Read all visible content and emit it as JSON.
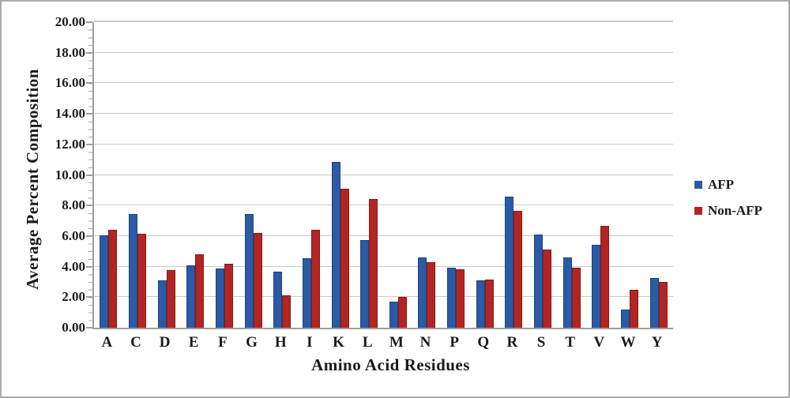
{
  "chart_data": {
    "type": "bar",
    "title": "",
    "xlabel": "Amino Acid Residues",
    "ylabel": "Average Percent Composition",
    "categories": [
      "A",
      "C",
      "D",
      "E",
      "F",
      "G",
      "H",
      "I",
      "K",
      "L",
      "M",
      "N",
      "P",
      "Q",
      "R",
      "S",
      "T",
      "V",
      "W",
      "Y"
    ],
    "series": [
      {
        "name": "AFP",
        "color": "#2b5aa6",
        "border_color": "#1f4379",
        "values": [
          6.05,
          7.45,
          3.1,
          4.1,
          3.9,
          7.45,
          3.65,
          4.55,
          10.85,
          5.75,
          1.7,
          4.6,
          3.95,
          3.1,
          8.6,
          6.1,
          4.6,
          5.45,
          1.2,
          3.25
        ]
      },
      {
        "name": "Non-AFP",
        "color": "#b22523",
        "border_color": "#871a18",
        "values": [
          6.4,
          6.15,
          3.75,
          4.8,
          4.2,
          6.2,
          2.1,
          6.4,
          9.1,
          8.45,
          2.0,
          4.3,
          3.85,
          3.15,
          7.65,
          5.1,
          3.95,
          6.65,
          2.5,
          3.0
        ]
      }
    ],
    "ylim": [
      0,
      20
    ],
    "ytick_step": 2,
    "ytick_labels": [
      "0.00",
      "2.00",
      "4.00",
      "6.00",
      "8.00",
      "10.00",
      "12.00",
      "14.00",
      "16.00",
      "18.00",
      "20.00"
    ],
    "grid": true,
    "legend_position": "right"
  },
  "colors": {
    "gridline": "#c9c9c9",
    "axis": "#9e9e9e",
    "text": "#1a1a1a",
    "figure_border": "#ababab",
    "background": "#ffffff"
  }
}
